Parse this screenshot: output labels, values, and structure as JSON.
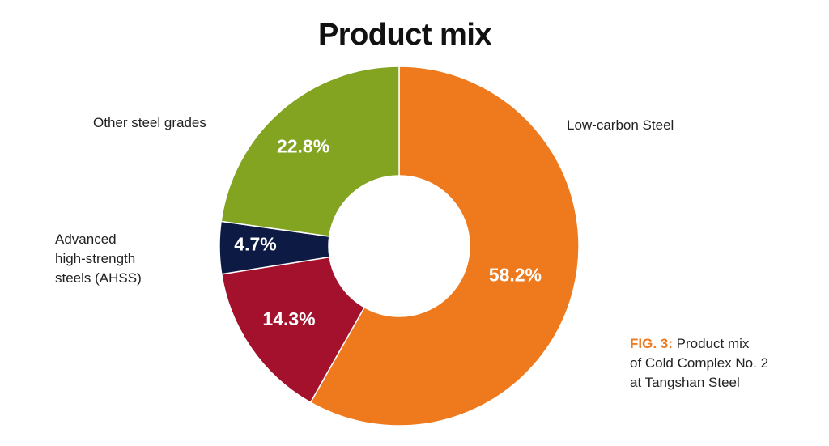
{
  "chart_data": {
    "type": "pie",
    "style": "donut",
    "title": "Product mix",
    "start": "12 o'clock",
    "direction": "clockwise",
    "slices": [
      {
        "label": "Low-carbon Steel",
        "value": 58.2,
        "value_label": "58.2%",
        "color": "#ef7a1e"
      },
      {
        "label": "",
        "value": 14.3,
        "value_label": "14.3%",
        "color": "#a3112d"
      },
      {
        "label": "",
        "value": 4.7,
        "value_label": "4.7%",
        "color": "#0d1b44"
      },
      {
        "label": "Other steel grades",
        "value": 22.8,
        "value_label": "22.8%",
        "color": "#82a420"
      }
    ],
    "category_labels": {
      "low_carbon": "Low-carbon Steel",
      "other": "Other steel grades",
      "ahss": "Advanced\nhigh-strength\nsteels (AHSS)"
    }
  },
  "caption": {
    "prefix": "FIG. 3:",
    "text": " Product mix\nof Cold Complex No. 2\nat Tangshan Steel"
  }
}
